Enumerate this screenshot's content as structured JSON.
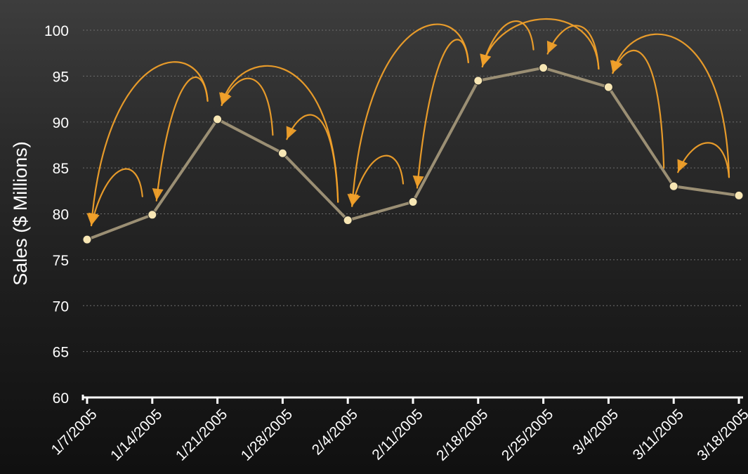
{
  "chart_data": {
    "type": "line",
    "title": "",
    "xlabel": "",
    "ylabel": "Sales  ($ Millions)",
    "categories": [
      "1/7/2005",
      "1/14/2005",
      "1/21/2005",
      "1/28/2005",
      "2/4/2005",
      "2/11/2005",
      "2/18/2005",
      "2/25/2005",
      "3/4/2005",
      "3/11/2005",
      "3/18/2005"
    ],
    "series": [
      {
        "values": [
          77.2,
          79.9,
          90.3,
          86.6,
          79.3,
          81.3,
          94.5,
          95.9,
          93.8,
          83.0,
          82.0
        ]
      }
    ],
    "ylim": [
      60,
      100
    ],
    "yticks": [
      60,
      65,
      70,
      75,
      80,
      85,
      90,
      95,
      100
    ],
    "grid": true,
    "legend": "none",
    "colors": {
      "line": "#9b8f74",
      "point": "#f7e6b4",
      "annotation_arrows": "#f0a02a",
      "text": "#ffffff",
      "grid": "#6e6e6e"
    },
    "annotations": {
      "type": "curved-arrows",
      "links": [
        {
          "from": 1,
          "to": 0
        },
        {
          "from": 2,
          "to": 0
        },
        {
          "from": 2,
          "to": 1
        },
        {
          "from": 3,
          "to": 2
        },
        {
          "from": 4,
          "to": 2
        },
        {
          "from": 4,
          "to": 3
        },
        {
          "from": 5,
          "to": 4
        },
        {
          "from": 6,
          "to": 4
        },
        {
          "from": 6,
          "to": 5
        },
        {
          "from": 7,
          "to": 6
        },
        {
          "from": 8,
          "to": 6
        },
        {
          "from": 8,
          "to": 7
        },
        {
          "from": 9,
          "to": 8
        },
        {
          "from": 10,
          "to": 8
        },
        {
          "from": 10,
          "to": 9
        }
      ]
    }
  }
}
